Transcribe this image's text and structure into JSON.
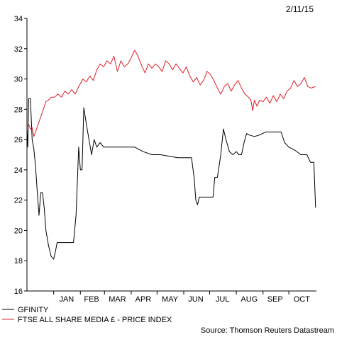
{
  "chart_data": {
    "type": "line",
    "date_label": "2/11/15",
    "source": "Source: Thomson Reuters Datastream",
    "ylim": [
      16,
      34
    ],
    "yticks": [
      16,
      18,
      20,
      22,
      24,
      26,
      28,
      30,
      32,
      34
    ],
    "xlim": [
      "2014-12-01",
      "2015-11-02"
    ],
    "month_labels": [
      {
        "label": "JAN",
        "date": "2015-01-16"
      },
      {
        "label": "FEB",
        "date": "2015-02-14"
      },
      {
        "label": "MAR",
        "date": "2015-03-16"
      },
      {
        "label": "APR",
        "date": "2015-04-15"
      },
      {
        "label": "MAY",
        "date": "2015-05-16"
      },
      {
        "label": "JUN",
        "date": "2015-06-15"
      },
      {
        "label": "JUL",
        "date": "2015-07-16"
      },
      {
        "label": "AUG",
        "date": "2015-08-16"
      },
      {
        "label": "SEP",
        "date": "2015-09-15"
      },
      {
        "label": "OCT",
        "date": "2015-10-16"
      }
    ],
    "month_starts": [
      "2015-01-01",
      "2015-02-01",
      "2015-03-01",
      "2015-04-01",
      "2015-05-01",
      "2015-06-01",
      "2015-07-01",
      "2015-08-01",
      "2015-09-01",
      "2015-10-01"
    ],
    "series": [
      {
        "name": "GFINITY",
        "color": "#000000",
        "points": [
          [
            "2014-12-01",
            26.7
          ],
          [
            "2014-12-02",
            25.5
          ],
          [
            "2014-12-03",
            28.7
          ],
          [
            "2014-12-05",
            28.7
          ],
          [
            "2014-12-07",
            26.0
          ],
          [
            "2014-12-09",
            25.4
          ],
          [
            "2014-12-11",
            24.2
          ],
          [
            "2014-12-13",
            22.5
          ],
          [
            "2014-12-15",
            21.0
          ],
          [
            "2014-12-17",
            22.5
          ],
          [
            "2014-12-19",
            22.5
          ],
          [
            "2014-12-21",
            21.5
          ],
          [
            "2014-12-23",
            20.0
          ],
          [
            "2014-12-26",
            19.0
          ],
          [
            "2014-12-29",
            18.3
          ],
          [
            "2015-01-01",
            18.1
          ],
          [
            "2015-01-03",
            18.6
          ],
          [
            "2015-01-05",
            19.2
          ],
          [
            "2015-01-08",
            19.2
          ],
          [
            "2015-01-12",
            19.2
          ],
          [
            "2015-01-16",
            19.2
          ],
          [
            "2015-01-20",
            19.2
          ],
          [
            "2015-01-24",
            19.2
          ],
          [
            "2015-01-27",
            21.0
          ],
          [
            "2015-01-30",
            25.5
          ],
          [
            "2015-02-01",
            24.0
          ],
          [
            "2015-02-03",
            24.0
          ],
          [
            "2015-02-05",
            28.1
          ],
          [
            "2015-02-08",
            27.0
          ],
          [
            "2015-02-11",
            26.0
          ],
          [
            "2015-02-14",
            25.0
          ],
          [
            "2015-02-17",
            26.0
          ],
          [
            "2015-02-20",
            25.5
          ],
          [
            "2015-02-24",
            25.8
          ],
          [
            "2015-02-28",
            25.5
          ],
          [
            "2015-03-05",
            25.5
          ],
          [
            "2015-03-15",
            25.5
          ],
          [
            "2015-03-25",
            25.5
          ],
          [
            "2015-04-05",
            25.5
          ],
          [
            "2015-04-15",
            25.2
          ],
          [
            "2015-04-25",
            25.0
          ],
          [
            "2015-05-05",
            25.0
          ],
          [
            "2015-05-15",
            24.9
          ],
          [
            "2015-05-25",
            24.8
          ],
          [
            "2015-06-05",
            24.8
          ],
          [
            "2015-06-10",
            24.8
          ],
          [
            "2015-06-13",
            23.5
          ],
          [
            "2015-06-15",
            22.0
          ],
          [
            "2015-06-17",
            21.7
          ],
          [
            "2015-06-19",
            22.2
          ],
          [
            "2015-06-25",
            22.2
          ],
          [
            "2015-07-01",
            22.2
          ],
          [
            "2015-07-05",
            22.2
          ],
          [
            "2015-07-07",
            23.5
          ],
          [
            "2015-07-10",
            23.5
          ],
          [
            "2015-07-14",
            25.0
          ],
          [
            "2015-07-17",
            26.7
          ],
          [
            "2015-07-20",
            26.0
          ],
          [
            "2015-07-24",
            25.2
          ],
          [
            "2015-07-28",
            25.0
          ],
          [
            "2015-08-01",
            25.2
          ],
          [
            "2015-08-04",
            25.0
          ],
          [
            "2015-08-07",
            25.0
          ],
          [
            "2015-08-10",
            25.8
          ],
          [
            "2015-08-13",
            26.4
          ],
          [
            "2015-08-16",
            26.3
          ],
          [
            "2015-08-22",
            26.2
          ],
          [
            "2015-08-28",
            26.3
          ],
          [
            "2015-09-04",
            26.5
          ],
          [
            "2015-09-10",
            26.5
          ],
          [
            "2015-09-16",
            26.5
          ],
          [
            "2015-09-22",
            26.5
          ],
          [
            "2015-09-26",
            25.8
          ],
          [
            "2015-10-01",
            25.5
          ],
          [
            "2015-10-08",
            25.3
          ],
          [
            "2015-10-15",
            25.0
          ],
          [
            "2015-10-22",
            25.0
          ],
          [
            "2015-10-26",
            24.5
          ],
          [
            "2015-10-30",
            24.5
          ],
          [
            "2015-11-01",
            21.5
          ]
        ]
      },
      {
        "name": "FTSE ALL SHARE MEDIA £ - PRICE INDEX",
        "color": "#dd1f2a",
        "points": [
          [
            "2014-12-01",
            26.9
          ],
          [
            "2014-12-03",
            27.0
          ],
          [
            "2014-12-05",
            26.7
          ],
          [
            "2014-12-07",
            26.8
          ],
          [
            "2014-12-09",
            26.2
          ],
          [
            "2014-12-11",
            26.5
          ],
          [
            "2014-12-14",
            27.0
          ],
          [
            "2014-12-17",
            27.5
          ],
          [
            "2014-12-20",
            28.0
          ],
          [
            "2014-12-23",
            28.5
          ],
          [
            "2014-12-26",
            28.6
          ],
          [
            "2014-12-29",
            28.8
          ],
          [
            "2015-01-02",
            28.8
          ],
          [
            "2015-01-06",
            29.0
          ],
          [
            "2015-01-10",
            28.8
          ],
          [
            "2015-01-14",
            29.2
          ],
          [
            "2015-01-18",
            29.0
          ],
          [
            "2015-01-22",
            29.3
          ],
          [
            "2015-01-26",
            29.0
          ],
          [
            "2015-01-30",
            29.5
          ],
          [
            "2015-02-04",
            30.0
          ],
          [
            "2015-02-08",
            29.8
          ],
          [
            "2015-02-12",
            30.2
          ],
          [
            "2015-02-16",
            29.9
          ],
          [
            "2015-02-20",
            30.6
          ],
          [
            "2015-02-24",
            31.0
          ],
          [
            "2015-02-28",
            30.8
          ],
          [
            "2015-03-04",
            31.2
          ],
          [
            "2015-03-08",
            31.0
          ],
          [
            "2015-03-12",
            31.5
          ],
          [
            "2015-03-16",
            30.5
          ],
          [
            "2015-03-20",
            31.2
          ],
          [
            "2015-03-24",
            30.8
          ],
          [
            "2015-03-28",
            31.0
          ],
          [
            "2015-04-01",
            31.4
          ],
          [
            "2015-04-05",
            31.9
          ],
          [
            "2015-04-09",
            31.5
          ],
          [
            "2015-04-13",
            30.9
          ],
          [
            "2015-04-17",
            30.4
          ],
          [
            "2015-04-21",
            31.0
          ],
          [
            "2015-04-25",
            30.7
          ],
          [
            "2015-04-29",
            31.0
          ],
          [
            "2015-05-03",
            30.8
          ],
          [
            "2015-05-07",
            30.5
          ],
          [
            "2015-05-11",
            31.2
          ],
          [
            "2015-05-15",
            31.0
          ],
          [
            "2015-05-19",
            30.6
          ],
          [
            "2015-05-23",
            31.0
          ],
          [
            "2015-05-27",
            30.7
          ],
          [
            "2015-05-31",
            30.4
          ],
          [
            "2015-06-04",
            30.8
          ],
          [
            "2015-06-08",
            30.2
          ],
          [
            "2015-06-12",
            29.8
          ],
          [
            "2015-06-16",
            30.1
          ],
          [
            "2015-06-20",
            29.6
          ],
          [
            "2015-06-24",
            29.9
          ],
          [
            "2015-06-28",
            30.5
          ],
          [
            "2015-07-02",
            30.3
          ],
          [
            "2015-07-06",
            29.9
          ],
          [
            "2015-07-10",
            29.4
          ],
          [
            "2015-07-14",
            29.0
          ],
          [
            "2015-07-18",
            29.5
          ],
          [
            "2015-07-22",
            29.7
          ],
          [
            "2015-07-26",
            29.2
          ],
          [
            "2015-07-30",
            29.6
          ],
          [
            "2015-08-03",
            29.9
          ],
          [
            "2015-08-07",
            29.4
          ],
          [
            "2015-08-11",
            29.0
          ],
          [
            "2015-08-15",
            28.8
          ],
          [
            "2015-08-18",
            28.6
          ],
          [
            "2015-08-20",
            27.9
          ],
          [
            "2015-08-22",
            28.6
          ],
          [
            "2015-08-25",
            28.2
          ],
          [
            "2015-08-28",
            28.6
          ],
          [
            "2015-09-01",
            28.5
          ],
          [
            "2015-09-05",
            28.8
          ],
          [
            "2015-09-09",
            28.4
          ],
          [
            "2015-09-13",
            28.9
          ],
          [
            "2015-09-17",
            28.5
          ],
          [
            "2015-09-21",
            29.0
          ],
          [
            "2015-09-25",
            28.7
          ],
          [
            "2015-09-29",
            29.2
          ],
          [
            "2015-10-03",
            29.4
          ],
          [
            "2015-10-07",
            29.9
          ],
          [
            "2015-10-11",
            29.5
          ],
          [
            "2015-10-15",
            29.7
          ],
          [
            "2015-10-19",
            30.1
          ],
          [
            "2015-10-23",
            29.5
          ],
          [
            "2015-10-27",
            29.4
          ],
          [
            "2015-11-01",
            29.5
          ]
        ]
      }
    ]
  }
}
